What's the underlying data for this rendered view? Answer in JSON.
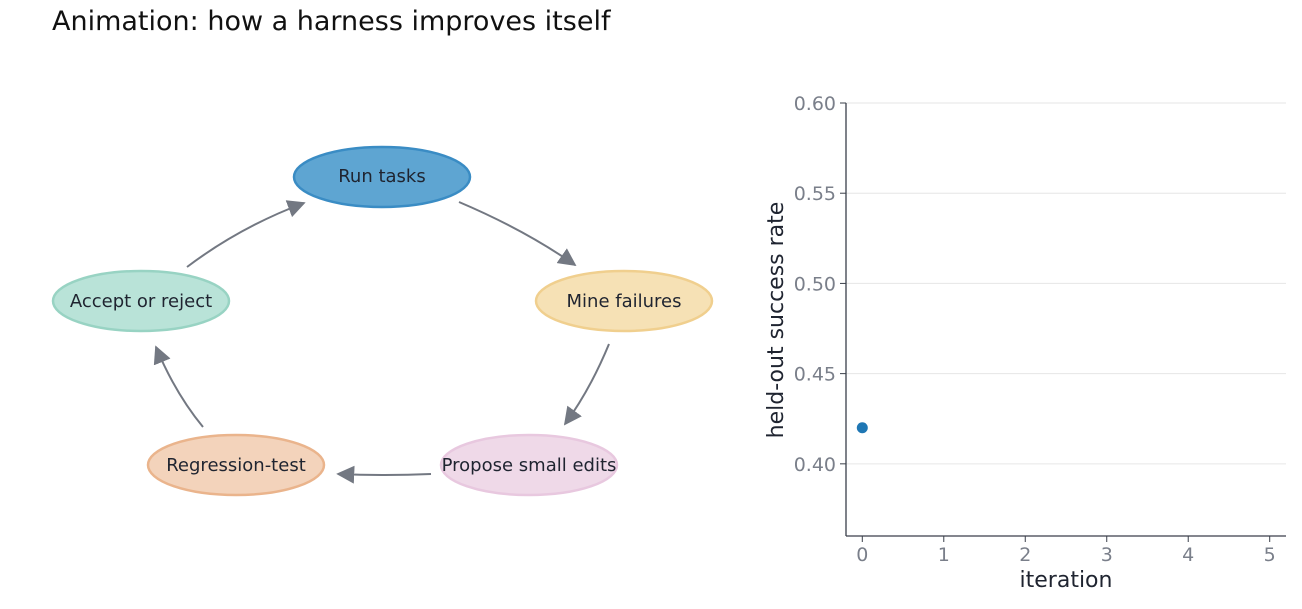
{
  "title": "Animation: how a harness improves itself",
  "cycle": {
    "nodes": [
      {
        "id": "run",
        "label": "Run tasks",
        "fill": "#5ea5d2",
        "stroke": "#3a8cc4",
        "active": true
      },
      {
        "id": "mine",
        "label": "Mine failures",
        "fill": "#f6e1b5",
        "stroke": "#f0cf8e",
        "active": false
      },
      {
        "id": "propose",
        "label": "Propose small edits",
        "fill": "#efd9e8",
        "stroke": "#e8c8df",
        "active": false
      },
      {
        "id": "regress",
        "label": "Regression-test",
        "fill": "#f3d3bb",
        "stroke": "#eab48c",
        "active": false
      },
      {
        "id": "accept",
        "label": "Accept or reject",
        "fill": "#b9e3d8",
        "stroke": "#98d3c3",
        "active": false
      }
    ],
    "arrow_color": "#737882"
  },
  "chart_data": {
    "type": "scatter",
    "xlabel": "iteration",
    "ylabel": "held-out success rate",
    "xlim": [
      -0.2,
      5.2
    ],
    "ylim": [
      0.36,
      0.6
    ],
    "xticks": [
      "0",
      "1",
      "2",
      "3",
      "4",
      "5"
    ],
    "yticks": [
      "0.40",
      "0.45",
      "0.50",
      "0.55",
      "0.60"
    ],
    "grid": "horizontal",
    "series": [
      {
        "x": [
          0
        ],
        "y": [
          0.42
        ],
        "color": "#1f77b4"
      }
    ]
  }
}
